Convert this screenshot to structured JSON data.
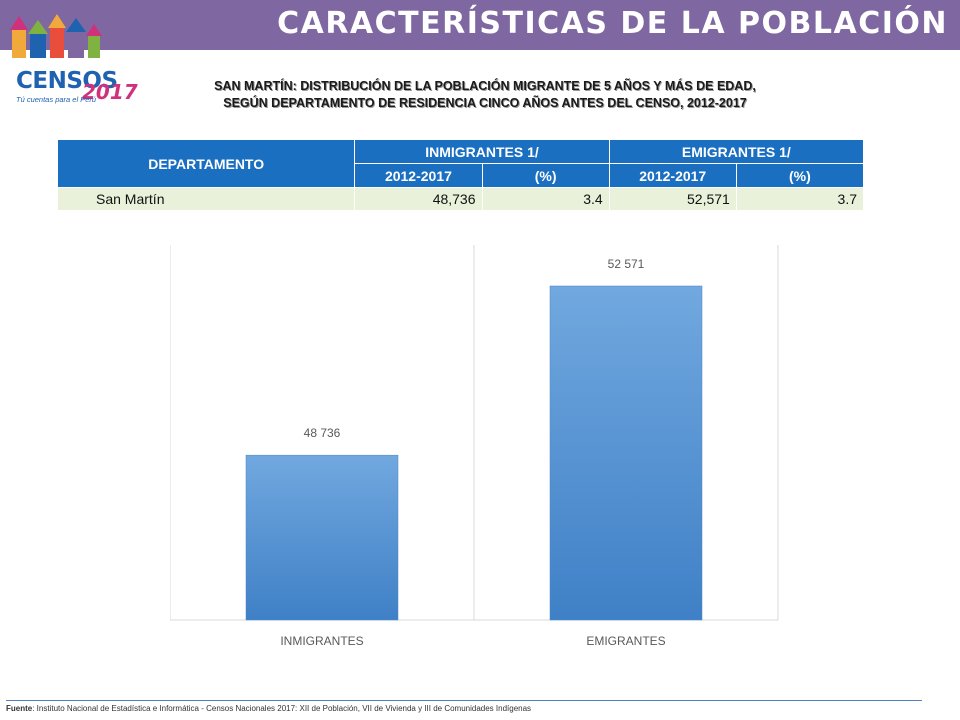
{
  "header": {
    "title": "CARACTERÍSTICAS DE LA POBLACIÓN",
    "logo_text": "CENSOS",
    "logo_year": "2017",
    "logo_sub": "Tú cuentas para el Perú"
  },
  "subtitle": {
    "line1": "SAN MARTÍN: DISTRIBUCIÓN DE LA POBLACIÓN MIGRANTE DE 5 AÑOS Y MÁS DE EDAD,",
    "line2": "SEGÚN DEPARTAMENTO DE RESIDENCIA CINCO AÑOS ANTES DEL CENSO, 2012-2017"
  },
  "table": {
    "col_departamento": "DEPARTAMENTO",
    "col_inmigrantes": "INMIGRANTES 1/",
    "col_emigrantes": "EMIGRANTES 1/",
    "sub_period_1": "2012-2017",
    "sub_pct_1": "(%)",
    "sub_period_2": "2012-2017",
    "sub_pct_2": "(%)",
    "row": {
      "departamento": "San Martín",
      "inm_value": "48,736",
      "inm_pct": "3.4",
      "emi_value": "52,571",
      "emi_pct": "3.7"
    }
  },
  "chart_data": {
    "type": "bar",
    "categories": [
      "INMIGRANTES",
      "EMIGRANTES"
    ],
    "values": [
      48736,
      52571
    ],
    "data_labels": [
      "48 736",
      "52 571"
    ],
    "title": "",
    "xlabel": "",
    "ylabel": "",
    "ylim": [
      45000,
      53500
    ],
    "grid": false,
    "bar_color": "#5b9bd5"
  },
  "footer": {
    "label": "Fuente",
    "text": ": Instituto Nacional de Estadística e Informática - Censos Nacionales 2017: XII de Población, VII de Vivienda y III de Comunidades Indígenas"
  }
}
